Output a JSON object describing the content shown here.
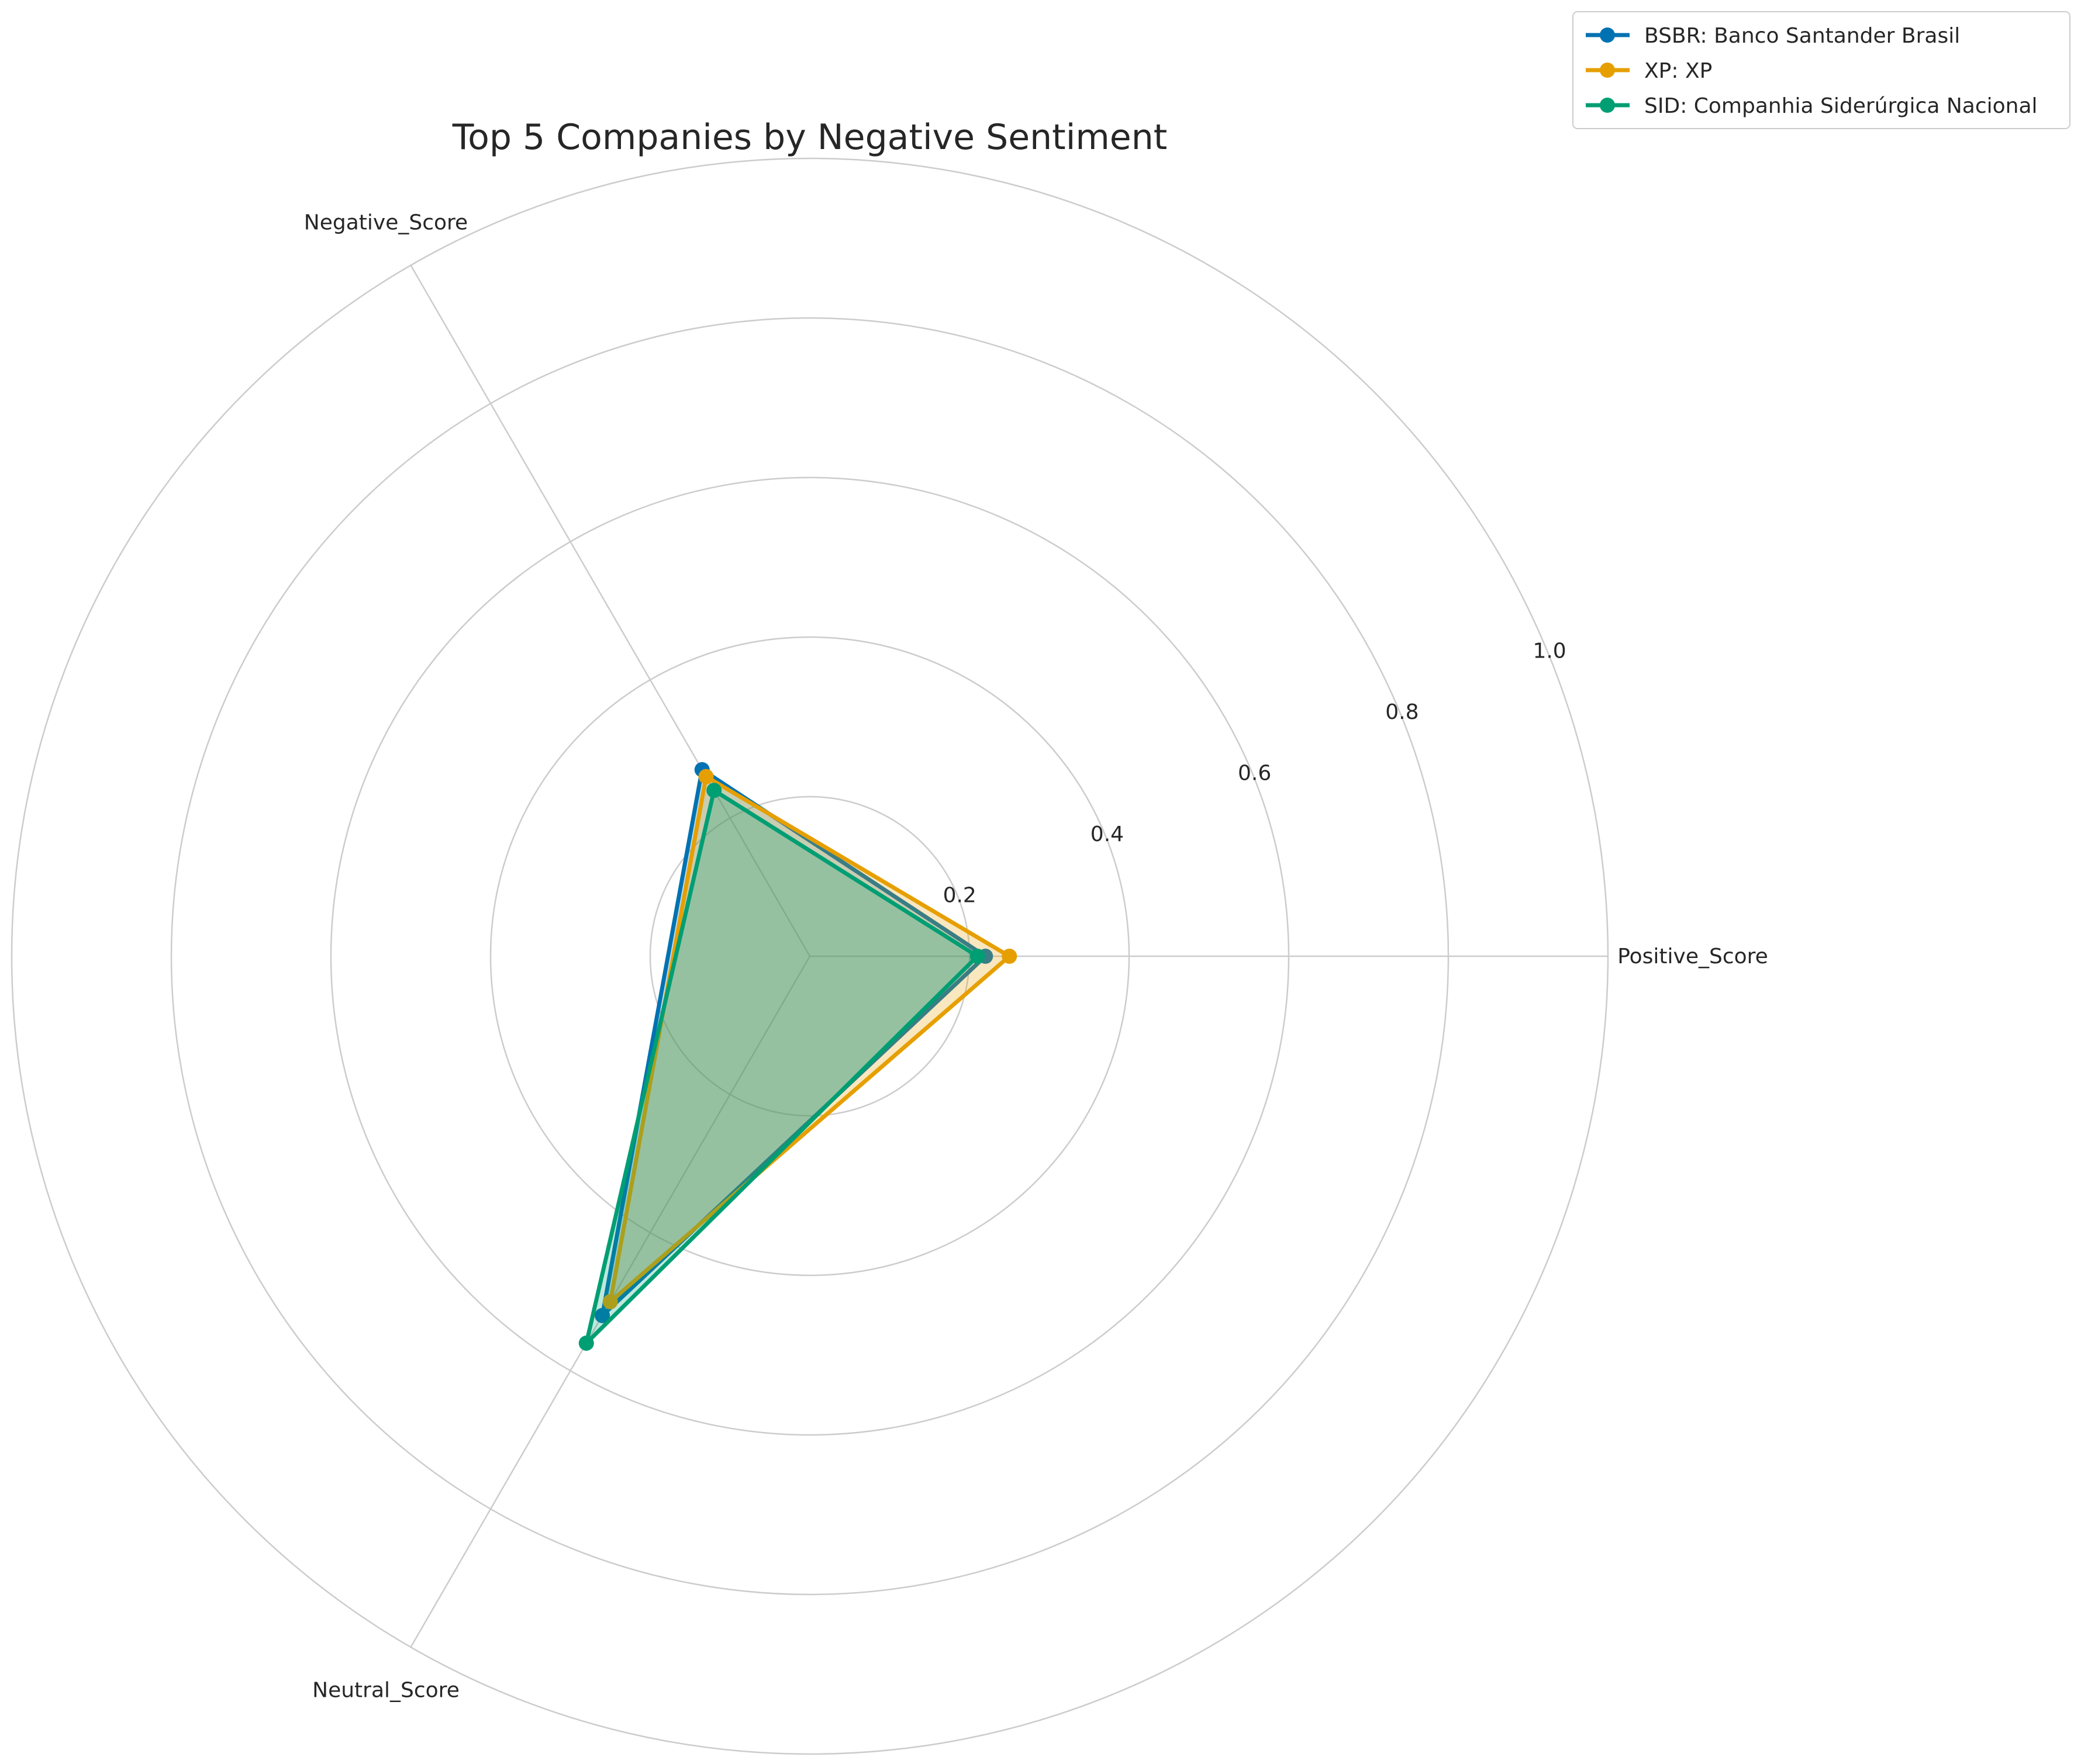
{
  "chart_data": {
    "type": "radar",
    "title": "Top 5 Companies by Negative Sentiment",
    "axes": [
      "Positive_Score",
      "Negative_Score",
      "Neutral_Score"
    ],
    "rlim": [
      0,
      1.0
    ],
    "r_ticks": [
      "0.2",
      "0.4",
      "0.6",
      "0.8",
      "1.0"
    ],
    "r_tick_values": [
      0.2,
      0.4,
      0.6,
      0.8,
      1.0
    ],
    "grid": true,
    "legend_position": "top-right",
    "series": [
      {
        "name": "BSBR: Banco Santander Brasil",
        "color": "#0072B2",
        "values": [
          0.22,
          0.27,
          0.52
        ]
      },
      {
        "name": "XP: XP",
        "color": "#E69F00",
        "values": [
          0.25,
          0.26,
          0.5
        ]
      },
      {
        "name": "SID: Companhia Siderúrgica Nacional",
        "color": "#009E73",
        "values": [
          0.21,
          0.24,
          0.56
        ]
      }
    ]
  }
}
